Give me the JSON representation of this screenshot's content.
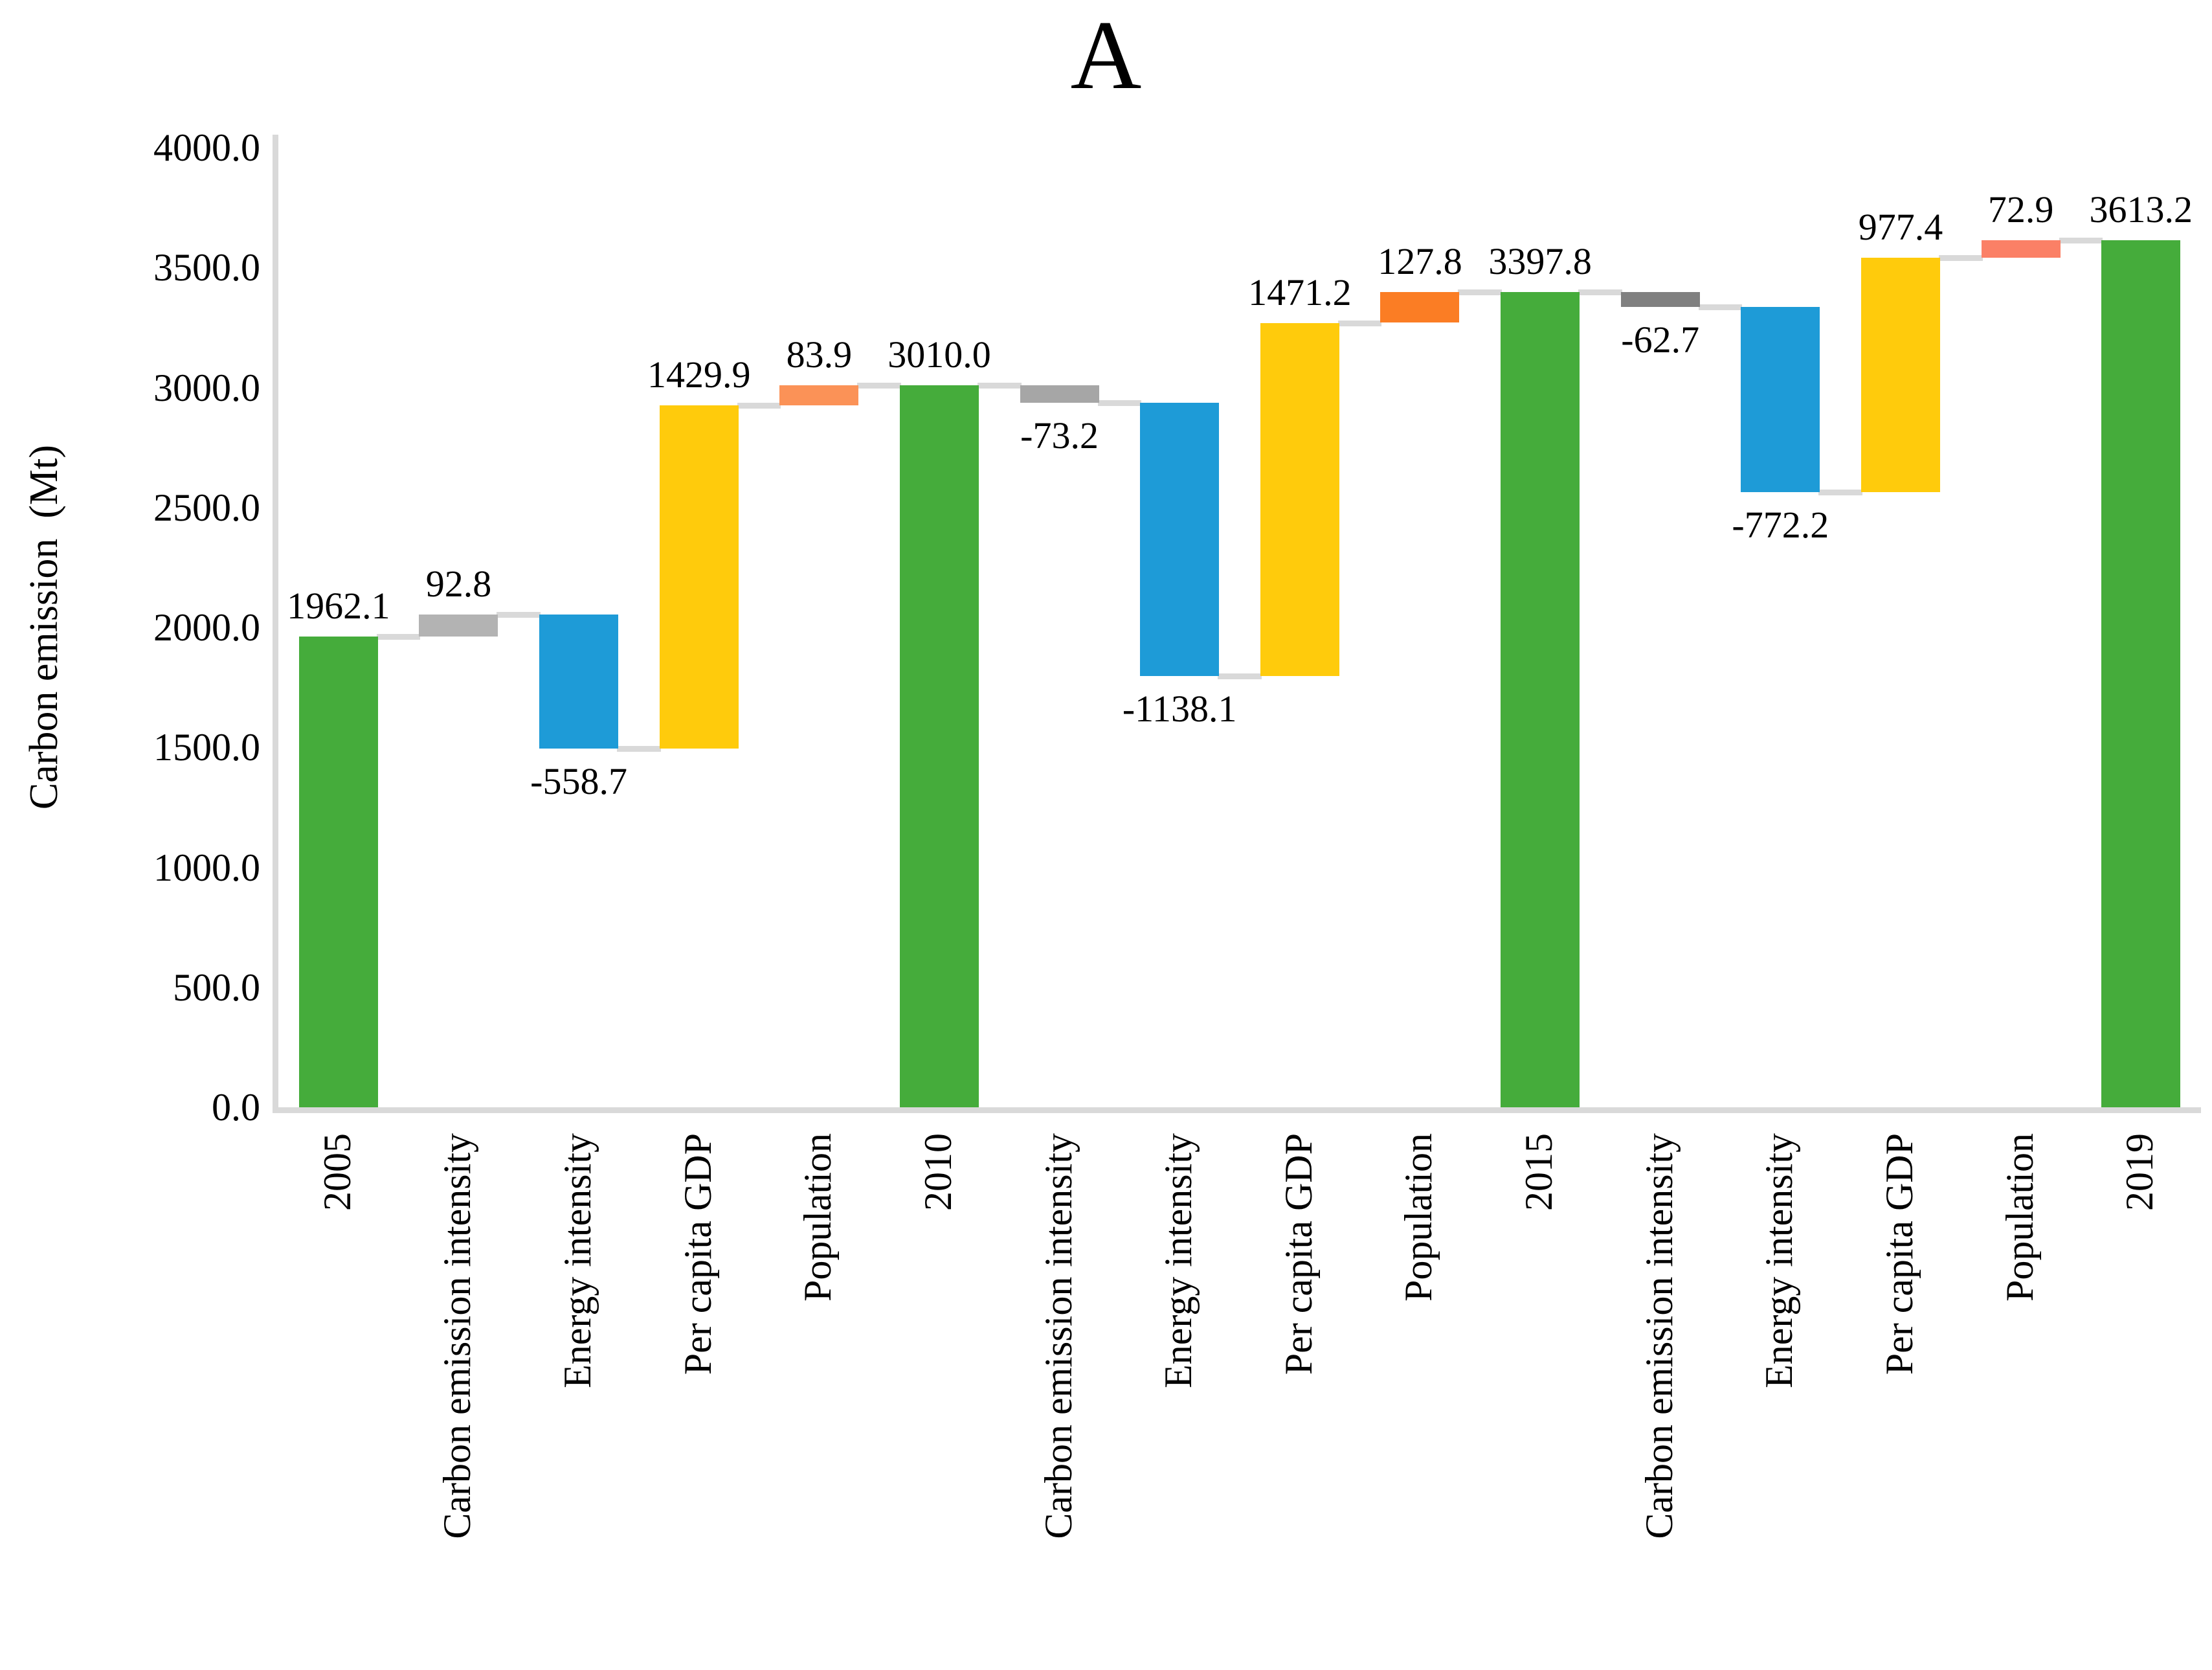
{
  "chart_data": {
    "type": "bar",
    "subtype": "waterfall",
    "title": "A",
    "ylabel": "Carbon emission  (Mt)",
    "xlabel": "",
    "ylim": [
      0,
      4000
    ],
    "ytick_step": 500,
    "ytick_labels": [
      "0.0",
      "500.0",
      "1000.0",
      "1500.0",
      "2000.0",
      "2500.0",
      "3000.0",
      "3500.0",
      "4000.0"
    ],
    "grid": false,
    "legend": false,
    "colors": {
      "total_green": "#45AC3B",
      "energy_intensity_blue": "#1E9BD7",
      "per_capita_gdp_yellow": "#FFCB0C",
      "connector": "#D9D9D9",
      "axis_line": "#D9D9D9",
      "text": "#000000",
      "background": "#FFFFFF"
    },
    "bars": [
      {
        "category": "2005",
        "role": "total",
        "value": 1962.1,
        "label": "1962.1",
        "label_position": "above",
        "color": "#45AC3B"
      },
      {
        "category": "Carbon emission intensity",
        "role": "delta",
        "value": 92.8,
        "label": "92.8",
        "label_position": "above",
        "color": "#B3B3B3"
      },
      {
        "category": "Energy intensity",
        "role": "delta",
        "value": -558.7,
        "label": "-558.7",
        "label_position": "below",
        "color": "#1E9BD7"
      },
      {
        "category": "Per capita GDP",
        "role": "delta",
        "value": 1429.9,
        "label": "1429.9",
        "label_position": "above",
        "color": "#FFCB0C"
      },
      {
        "category": "Population",
        "role": "delta",
        "value": 83.9,
        "label": "83.9",
        "label_position": "above",
        "color": "#FB9257"
      },
      {
        "category": "2010",
        "role": "total",
        "value": 3010.0,
        "label": "3010.0",
        "label_position": "above",
        "color": "#45AC3B"
      },
      {
        "category": "Carbon emission intensity",
        "role": "delta",
        "value": -73.2,
        "label": "-73.2",
        "label_position": "below",
        "color": "#A6A6A6"
      },
      {
        "category": "Energy intensity",
        "role": "delta",
        "value": -1138.1,
        "label": "-1138.1",
        "label_position": "below",
        "color": "#1E9BD7"
      },
      {
        "category": "Per capita GDP",
        "role": "delta",
        "value": 1471.2,
        "label": "1471.2",
        "label_position": "above",
        "color": "#FFCB0C"
      },
      {
        "category": "Population",
        "role": "delta",
        "value": 127.8,
        "label": "127.8",
        "label_position": "above",
        "color": "#FB7D24"
      },
      {
        "category": "2015",
        "role": "total",
        "value": 3397.8,
        "label": "3397.8",
        "label_position": "above",
        "color": "#45AC3B"
      },
      {
        "category": "Carbon emission intensity",
        "role": "delta",
        "value": -62.7,
        "label": "-62.7",
        "label_position": "below",
        "color": "#808080"
      },
      {
        "category": "Energy intensity",
        "role": "delta",
        "value": -772.2,
        "label": "-772.2",
        "label_position": "below",
        "color": "#1E9BD7"
      },
      {
        "category": "Per capita GDP",
        "role": "delta",
        "value": 977.4,
        "label": "977.4",
        "label_position": "above",
        "color": "#FFCB0C"
      },
      {
        "category": "Population",
        "role": "delta",
        "value": 72.9,
        "label": "72.9",
        "label_position": "above",
        "color": "#FB8066"
      },
      {
        "category": "2019",
        "role": "total",
        "value": 3613.2,
        "label": "3613.2",
        "label_position": "above",
        "color": "#45AC3B"
      }
    ]
  }
}
